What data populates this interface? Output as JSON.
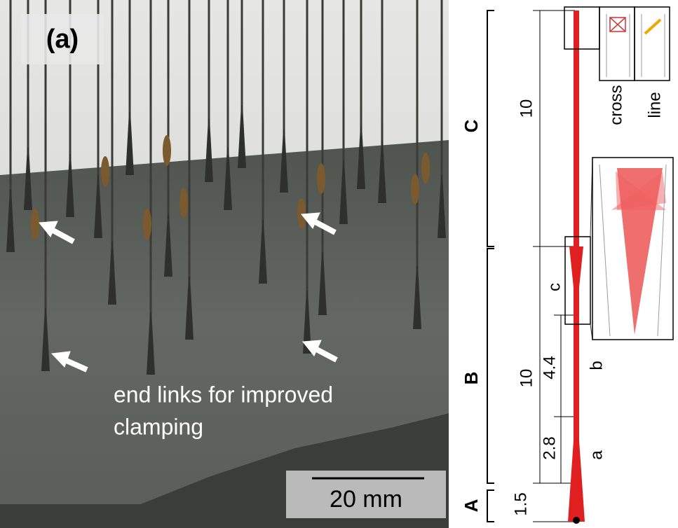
{
  "photo": {
    "label": "(a)",
    "annotation": [
      "end links for improved",
      "clamping"
    ],
    "scale_bar": "20 mm"
  },
  "schematic": {
    "sections": [
      "C",
      "B",
      "A"
    ],
    "dimensions": [
      "10",
      "10",
      "1.5",
      "4.4",
      "2.8"
    ],
    "parts": [
      "c",
      "b",
      "a"
    ],
    "insets": [
      "cross",
      "line"
    ]
  }
}
